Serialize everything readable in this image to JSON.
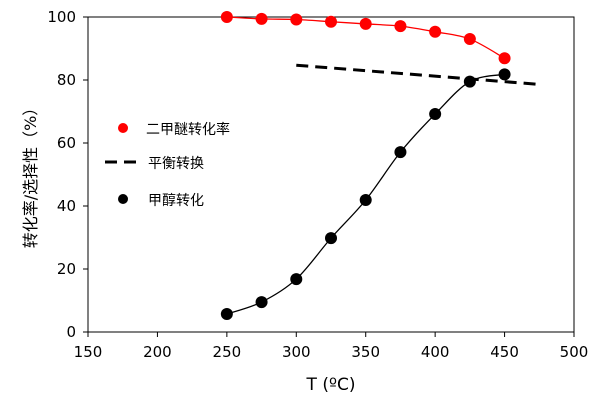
{
  "chart_data": {
    "type": "line",
    "title": "",
    "xlabel": "T (ºC)",
    "ylabel": "转化率/选择性（%）",
    "xlim": [
      150,
      500
    ],
    "ylim": [
      0,
      100
    ],
    "xticks": [
      150,
      200,
      250,
      300,
      350,
      400,
      450,
      500
    ],
    "yticks": [
      0,
      20,
      40,
      60,
      80,
      100
    ],
    "grid": false,
    "legend_position": "left",
    "series": [
      {
        "name": "二甲醚转化率",
        "style": "markers+smooth-line",
        "color": "#ff0000",
        "x": [
          250,
          275,
          300,
          325,
          350,
          375,
          400,
          425,
          450
        ],
        "y": [
          100,
          99.4,
          99.2,
          98.5,
          97.8,
          97.1,
          95.3,
          93.0,
          86.9
        ]
      },
      {
        "name": "平衡转换",
        "style": "dashed-line",
        "color": "#000000",
        "x": [
          300,
          475
        ],
        "y": [
          84.7,
          78.6
        ]
      },
      {
        "name": "甲醇转化",
        "style": "markers+smooth-line",
        "color": "#000000",
        "x": [
          250,
          275,
          300,
          325,
          350,
          375,
          400,
          425,
          450
        ],
        "y": [
          5.7,
          9.5,
          16.8,
          29.8,
          41.9,
          57.1,
          69.2,
          79.5,
          81.8
        ]
      }
    ]
  }
}
